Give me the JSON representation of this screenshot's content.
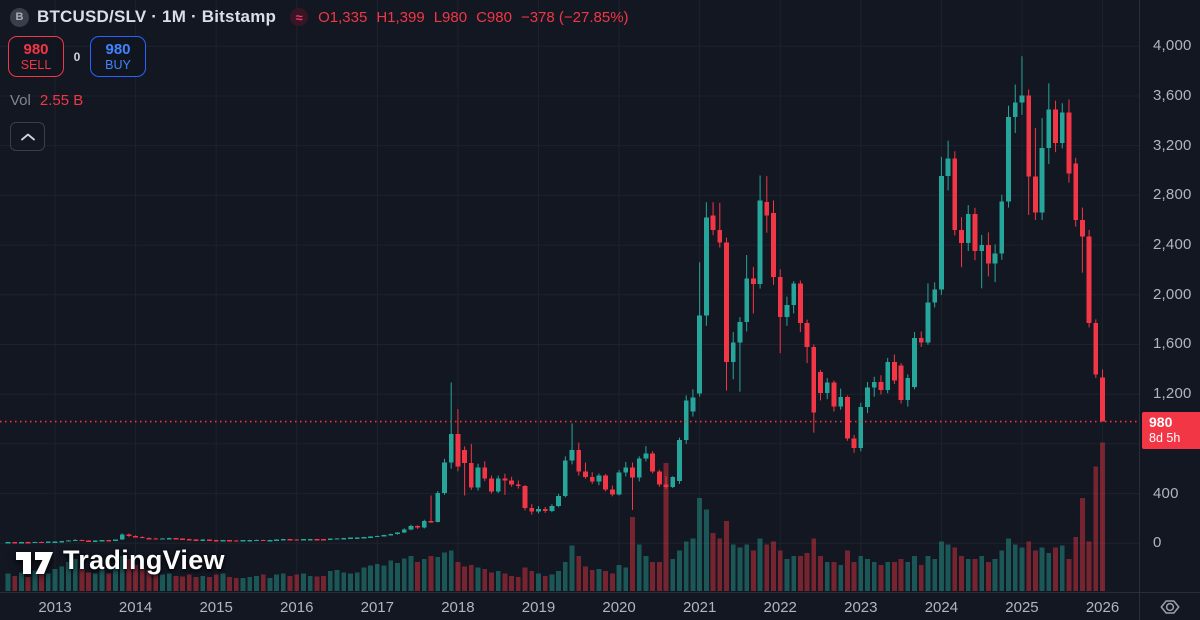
{
  "legend": {
    "symbol_icon": "B",
    "title": "BTCUSD/SLV · 1M · Bitstamp",
    "approx_icon": "≈",
    "open": "O1,335",
    "high": "H1,399",
    "low": "L980",
    "close": "C980",
    "change": "−378 (−27.85%)"
  },
  "trade": {
    "sell_price": "980",
    "sell_label": "SELL",
    "spread": "0",
    "buy_price": "980",
    "buy_label": "BUY"
  },
  "volume_row": {
    "label": "Vol",
    "value": "2.55 B"
  },
  "price_axis_tag": {
    "last_price": "980",
    "countdown": "8d 5h"
  },
  "logo": {
    "text": "TradingView"
  },
  "chart_data": {
    "type": "candlestick+volume",
    "symbol": "BTCUSD/SLV",
    "interval": "1M",
    "exchange": "Bitstamp",
    "x_start": "2012-06",
    "x_end": "2026-01",
    "price_line": 980,
    "ylim": [
      0,
      4200
    ],
    "grid": "on",
    "colors": {
      "bg": "#131722",
      "grid": "#1e222d",
      "up": "#26a69a",
      "down": "#f23645",
      "vol_up": "rgba(38,166,154,0.45)",
      "vol_down": "rgba(242,54,69,0.45)",
      "axis_text": "#b2b5be"
    },
    "grid_prices": [
      0,
      400,
      800,
      1200,
      1600,
      2000,
      2400,
      2800,
      3200,
      3600,
      4000
    ],
    "price_ticks": [
      {
        "p": 4000,
        "label": "4,000"
      },
      {
        "p": 3600,
        "label": "3,600"
      },
      {
        "p": 3200,
        "label": "3,200"
      },
      {
        "p": 2800,
        "label": "2,800"
      },
      {
        "p": 2400,
        "label": "2,400"
      },
      {
        "p": 2000,
        "label": "2,000"
      },
      {
        "p": 1600,
        "label": "1,600"
      },
      {
        "p": 1200,
        "label": "1,200"
      },
      {
        "p": 400,
        "label": "400"
      },
      {
        "p": 0,
        "label": "0"
      }
    ],
    "years": [
      "2013",
      "2014",
      "2015",
      "2016",
      "2017",
      "2018",
      "2019",
      "2020",
      "2021",
      "2022",
      "2023",
      "2024",
      "2025",
      "2026"
    ],
    "candles_format": [
      "open",
      "high",
      "low",
      "close",
      "volume_B"
    ],
    "candles": [
      [
        9,
        11,
        8,
        10,
        0.3
      ],
      [
        10,
        12,
        9,
        9,
        0.26
      ],
      [
        9,
        12,
        8,
        11,
        0.32
      ],
      [
        11,
        13,
        10,
        10,
        0.24
      ],
      [
        10,
        13,
        9,
        12,
        0.35
      ],
      [
        12,
        14,
        10,
        11,
        0.28
      ],
      [
        11,
        14,
        10,
        13,
        0.3
      ],
      [
        13,
        16,
        12,
        15,
        0.38
      ],
      [
        15,
        20,
        14,
        19,
        0.42
      ],
      [
        19,
        26,
        17,
        24,
        0.5
      ],
      [
        24,
        34,
        20,
        28,
        0.55
      ],
      [
        28,
        30,
        21,
        23,
        0.4
      ],
      [
        23,
        25,
        19,
        21,
        0.32
      ],
      [
        21,
        24,
        19,
        22,
        0.3
      ],
      [
        22,
        26,
        20,
        25,
        0.36
      ],
      [
        25,
        27,
        21,
        23,
        0.3
      ],
      [
        23,
        30,
        22,
        29,
        0.42
      ],
      [
        29,
        80,
        27,
        72,
        0.6
      ],
      [
        72,
        78,
        52,
        58,
        0.55
      ],
      [
        58,
        64,
        48,
        52,
        0.45
      ],
      [
        52,
        56,
        40,
        43,
        0.4
      ],
      [
        43,
        48,
        38,
        40,
        0.35
      ],
      [
        40,
        44,
        34,
        36,
        0.3
      ],
      [
        36,
        42,
        34,
        40,
        0.28
      ],
      [
        40,
        45,
        37,
        42,
        0.3
      ],
      [
        42,
        44,
        36,
        38,
        0.26
      ],
      [
        38,
        40,
        33,
        35,
        0.25
      ],
      [
        35,
        37,
        29,
        31,
        0.28
      ],
      [
        31,
        34,
        27,
        29,
        0.24
      ],
      [
        29,
        33,
        26,
        31,
        0.26
      ],
      [
        31,
        32,
        25,
        27,
        0.24
      ],
      [
        27,
        28,
        21,
        23,
        0.28
      ],
      [
        23,
        27,
        21,
        26,
        0.3
      ],
      [
        26,
        27,
        22,
        24,
        0.24
      ],
      [
        24,
        26,
        21,
        23,
        0.22
      ],
      [
        23,
        26,
        22,
        25,
        0.22
      ],
      [
        25,
        28,
        23,
        27,
        0.24
      ],
      [
        27,
        30,
        24,
        28,
        0.26
      ],
      [
        28,
        29,
        23,
        25,
        0.28
      ],
      [
        25,
        28,
        23,
        27,
        0.22
      ],
      [
        27,
        32,
        25,
        31,
        0.28
      ],
      [
        31,
        36,
        29,
        34,
        0.3
      ],
      [
        34,
        35,
        30,
        32,
        0.26
      ],
      [
        32,
        34,
        28,
        30,
        0.28
      ],
      [
        30,
        35,
        29,
        34,
        0.3
      ],
      [
        34,
        36,
        31,
        35,
        0.26
      ],
      [
        35,
        36,
        31,
        33,
        0.25
      ],
      [
        33,
        34,
        29,
        31,
        0.26
      ],
      [
        31,
        39,
        30,
        38,
        0.34
      ],
      [
        38,
        42,
        35,
        40,
        0.36
      ],
      [
        40,
        44,
        38,
        43,
        0.32
      ],
      [
        43,
        46,
        41,
        45,
        0.3
      ],
      [
        45,
        48,
        42,
        47,
        0.32
      ],
      [
        47,
        52,
        44,
        50,
        0.4
      ],
      [
        50,
        57,
        47,
        55,
        0.44
      ],
      [
        55,
        62,
        52,
        60,
        0.46
      ],
      [
        60,
        70,
        57,
        67,
        0.44
      ],
      [
        67,
        78,
        63,
        74,
        0.52
      ],
      [
        74,
        90,
        70,
        86,
        0.48
      ],
      [
        86,
        120,
        82,
        112,
        0.56
      ],
      [
        112,
        150,
        105,
        138,
        0.6
      ],
      [
        138,
        145,
        115,
        128,
        0.5
      ],
      [
        128,
        190,
        120,
        180,
        0.55
      ],
      [
        180,
        385,
        165,
        172,
        0.6
      ],
      [
        172,
        420,
        168,
        405,
        0.58
      ],
      [
        405,
        680,
        390,
        650,
        0.66
      ],
      [
        650,
        1295,
        600,
        880,
        0.7
      ],
      [
        880,
        1080,
        580,
        620,
        0.5
      ],
      [
        750,
        780,
        385,
        645,
        0.42
      ],
      [
        645,
        800,
        430,
        450,
        0.45
      ],
      [
        450,
        640,
        425,
        610,
        0.4
      ],
      [
        610,
        660,
        500,
        520,
        0.38
      ],
      [
        520,
        545,
        400,
        415,
        0.32
      ],
      [
        415,
        545,
        405,
        520,
        0.34
      ],
      [
        520,
        560,
        390,
        505,
        0.3
      ],
      [
        505,
        535,
        455,
        475,
        0.26
      ],
      [
        475,
        505,
        440,
        460,
        0.24
      ],
      [
        460,
        470,
        265,
        285,
        0.4
      ],
      [
        285,
        315,
        230,
        255,
        0.34
      ],
      [
        255,
        300,
        240,
        278,
        0.3
      ],
      [
        278,
        292,
        245,
        258,
        0.26
      ],
      [
        258,
        315,
        250,
        302,
        0.28
      ],
      [
        302,
        398,
        290,
        382,
        0.34
      ],
      [
        382,
        700,
        370,
        668,
        0.5
      ],
      [
        668,
        965,
        635,
        752,
        0.78
      ],
      [
        752,
        810,
        545,
        578,
        0.6
      ],
      [
        578,
        650,
        520,
        535,
        0.42
      ],
      [
        535,
        572,
        478,
        498,
        0.36
      ],
      [
        498,
        562,
        468,
        545,
        0.38
      ],
      [
        545,
        558,
        418,
        432,
        0.34
      ],
      [
        432,
        465,
        378,
        392,
        0.3
      ],
      [
        392,
        590,
        385,
        570,
        0.45
      ],
      [
        570,
        655,
        538,
        612,
        0.4
      ],
      [
        612,
        650,
        268,
        528,
        1.27
      ],
      [
        528,
        700,
        498,
        682,
        0.8
      ],
      [
        682,
        782,
        660,
        722,
        0.6
      ],
      [
        722,
        742,
        562,
        578,
        0.5
      ],
      [
        578,
        592,
        455,
        472,
        0.5
      ],
      [
        472,
        540,
        438,
        452,
        2.2
      ],
      [
        452,
        540,
        445,
        532,
        0.55
      ],
      [
        500,
        850,
        478,
        830,
        0.7
      ],
      [
        830,
        1190,
        800,
        1150,
        0.85
      ],
      [
        1060,
        1240,
        1020,
        1175,
        0.9
      ],
      [
        1207,
        2262,
        1180,
        1835,
        1.6
      ],
      [
        1835,
        2745,
        1750,
        2624,
        1.4
      ],
      [
        2640,
        2745,
        2480,
        2520,
        1.0
      ],
      [
        2520,
        2740,
        2380,
        2420,
        0.9
      ],
      [
        2420,
        2460,
        1230,
        1460,
        1.2
      ],
      [
        1460,
        1700,
        1320,
        1615,
        0.8
      ],
      [
        1615,
        1820,
        1220,
        1780,
        0.75
      ],
      [
        1780,
        2320,
        1705,
        2130,
        0.8
      ],
      [
        2130,
        2225,
        1850,
        2085,
        0.7
      ],
      [
        2085,
        2960,
        2050,
        2760,
        0.9
      ],
      [
        2745,
        2955,
        2500,
        2640,
        0.8
      ],
      [
        2660,
        2760,
        2080,
        2145,
        0.85
      ],
      [
        2145,
        2205,
        1530,
        1822,
        0.7
      ],
      [
        1822,
        1985,
        1750,
        1918,
        0.55
      ],
      [
        1918,
        2110,
        1850,
        2090,
        0.6
      ],
      [
        2090,
        2115,
        1700,
        1772,
        0.6
      ],
      [
        1772,
        1800,
        1450,
        1580,
        0.65
      ],
      [
        1580,
        1600,
        890,
        1052,
        0.9
      ],
      [
        1380,
        1395,
        1150,
        1210,
        0.6
      ],
      [
        1210,
        1330,
        1160,
        1295,
        0.5
      ],
      [
        1295,
        1310,
        1060,
        1100,
        0.5
      ],
      [
        1100,
        1245,
        1075,
        1178,
        0.45
      ],
      [
        1178,
        1190,
        825,
        845,
        0.7
      ],
      [
        845,
        872,
        728,
        768,
        0.5
      ],
      [
        768,
        1130,
        740,
        1095,
        0.6
      ],
      [
        1095,
        1298,
        1048,
        1252,
        0.55
      ],
      [
        1252,
        1340,
        1180,
        1298,
        0.5
      ],
      [
        1298,
        1352,
        1198,
        1232,
        0.45
      ],
      [
        1232,
        1492,
        1208,
        1458,
        0.5
      ],
      [
        1458,
        1520,
        1282,
        1312,
        0.5
      ],
      [
        1432,
        1450,
        1125,
        1152,
        0.55
      ],
      [
        1152,
        1360,
        1100,
        1330,
        0.5
      ],
      [
        1258,
        1700,
        1240,
        1652,
        0.6
      ],
      [
        1652,
        1705,
        1580,
        1618,
        0.45
      ],
      [
        1618,
        2092,
        1598,
        1938,
        0.6
      ],
      [
        1938,
        2100,
        1898,
        2042,
        0.55
      ],
      [
        2042,
        3110,
        2000,
        2958,
        0.85
      ],
      [
        2958,
        3240,
        2840,
        3098,
        0.8
      ],
      [
        3098,
        3155,
        2478,
        2522,
        0.75
      ],
      [
        2522,
        2625,
        2222,
        2418,
        0.6
      ],
      [
        2418,
        2722,
        2352,
        2652,
        0.55
      ],
      [
        2652,
        2700,
        2278,
        2352,
        0.55
      ],
      [
        2352,
        2482,
        2052,
        2402,
        0.6
      ],
      [
        2402,
        2502,
        2148,
        2252,
        0.5
      ],
      [
        2252,
        2405,
        2102,
        2332,
        0.55
      ],
      [
        2332,
        2805,
        2282,
        2752,
        0.7
      ],
      [
        2752,
        3522,
        2702,
        3432,
        0.9
      ],
      [
        3432,
        3692,
        3302,
        3548,
        0.8
      ],
      [
        3548,
        3920,
        3448,
        3602,
        0.75
      ],
      [
        3602,
        3652,
        2642,
        2952,
        0.85
      ],
      [
        2952,
        3342,
        2602,
        2662,
        0.7
      ],
      [
        2662,
        3422,
        2602,
        3182,
        0.75
      ],
      [
        3182,
        3702,
        3052,
        3492,
        0.65
      ],
      [
        3492,
        3562,
        3148,
        3222,
        0.75
      ],
      [
        3222,
        3542,
        3178,
        3468,
        0.78
      ],
      [
        3468,
        3572,
        2902,
        2978,
        0.55
      ],
      [
        3055,
        3102,
        2548,
        2602,
        0.93
      ],
      [
        2602,
        2702,
        2178,
        2468,
        1.6
      ],
      [
        2468,
        2522,
        1738,
        1772,
        0.85
      ],
      [
        1772,
        1802,
        1330,
        1358,
        2.14
      ],
      [
        1335,
        1399,
        980,
        980,
        2.55
      ]
    ]
  }
}
